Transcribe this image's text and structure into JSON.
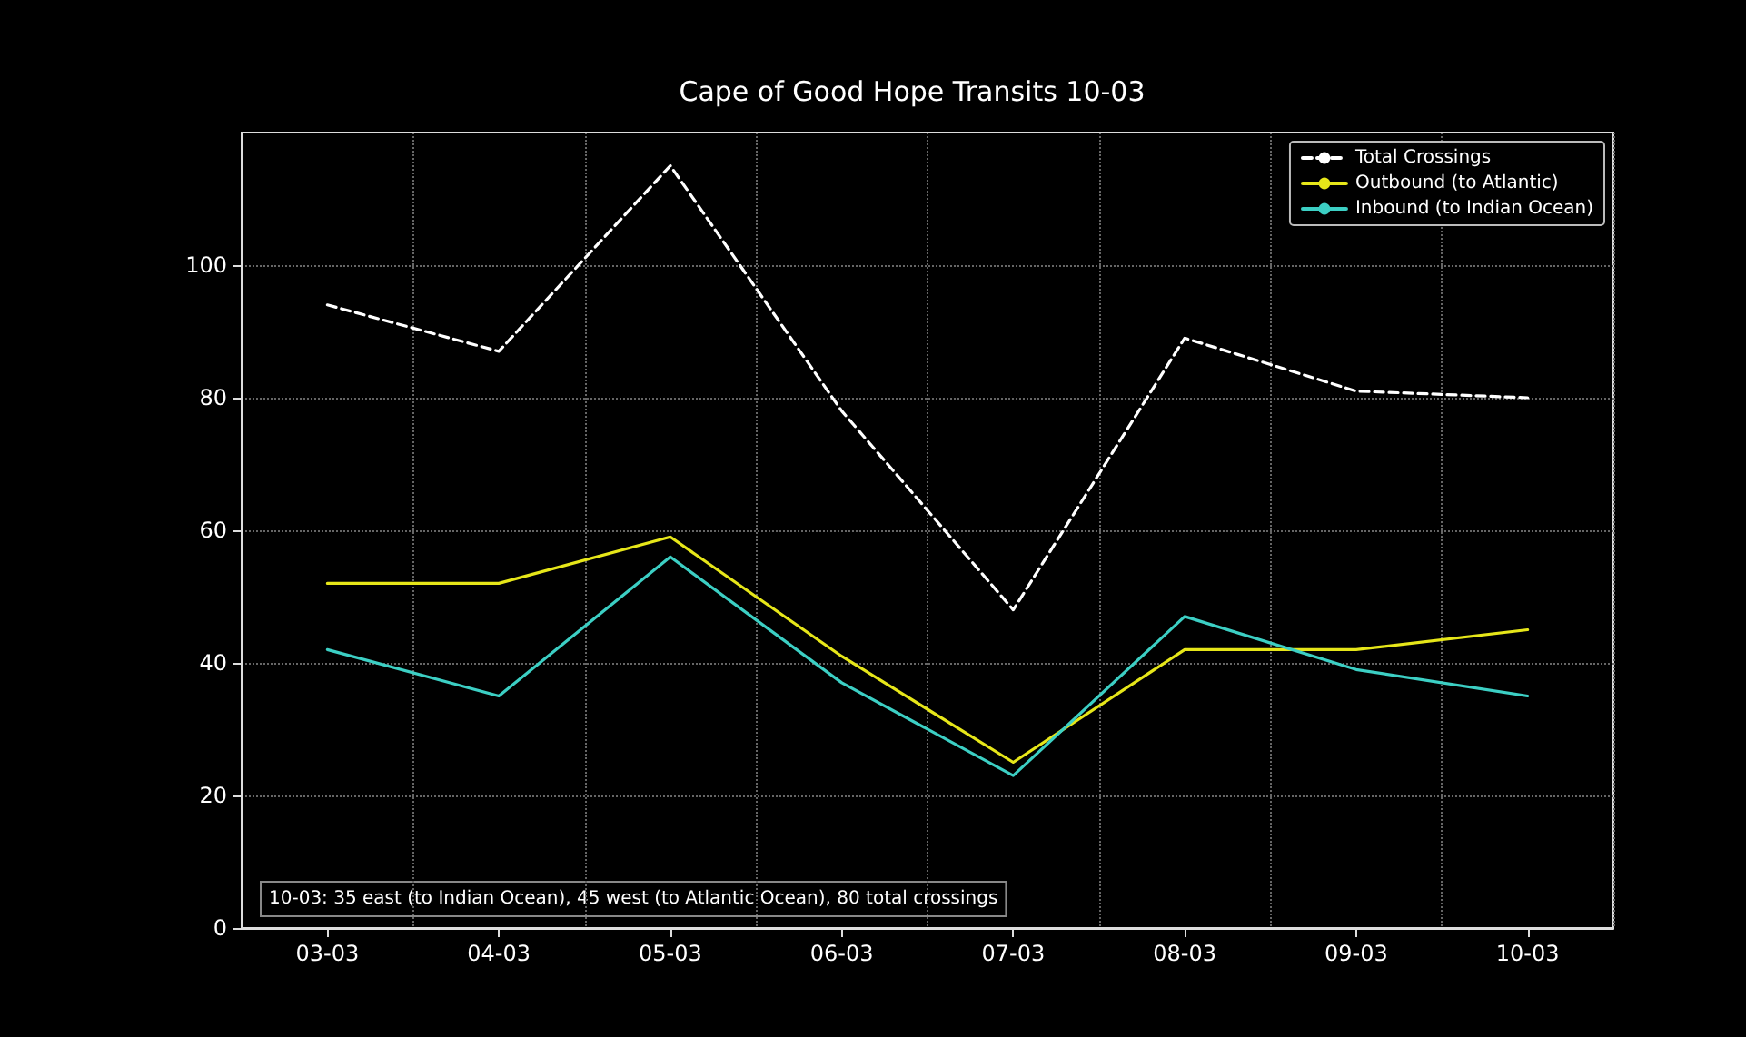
{
  "chart_data": {
    "type": "line",
    "title": "Cape of Good Hope Transits 10-03",
    "categories": [
      "03-03",
      "04-03",
      "05-03",
      "06-03",
      "07-03",
      "08-03",
      "09-03",
      "10-03"
    ],
    "series": [
      {
        "name": "Total Crossings",
        "color": "#ffffff",
        "line_style": "dashed",
        "values": [
          94,
          87,
          115,
          78,
          48,
          89,
          81,
          80
        ]
      },
      {
        "name": "Outbound (to Atlantic)",
        "color": "#e6e619",
        "line_style": "solid",
        "values": [
          52,
          52,
          59,
          41,
          25,
          42,
          42,
          45
        ]
      },
      {
        "name": "Inbound (to Indian Ocean)",
        "color": "#3ccfc4",
        "line_style": "solid",
        "values": [
          42,
          35,
          56,
          37,
          23,
          47,
          39,
          35
        ]
      }
    ],
    "ylim": [
      0,
      120
    ],
    "yticks": [
      0,
      20,
      40,
      60,
      80,
      100
    ],
    "grid": true,
    "legend": "top right",
    "marker": "none",
    "annotations": [
      "10-03: 35 east (to Indian Ocean), 45 west (to Atlantic Ocean), 80 total crossings"
    ]
  }
}
